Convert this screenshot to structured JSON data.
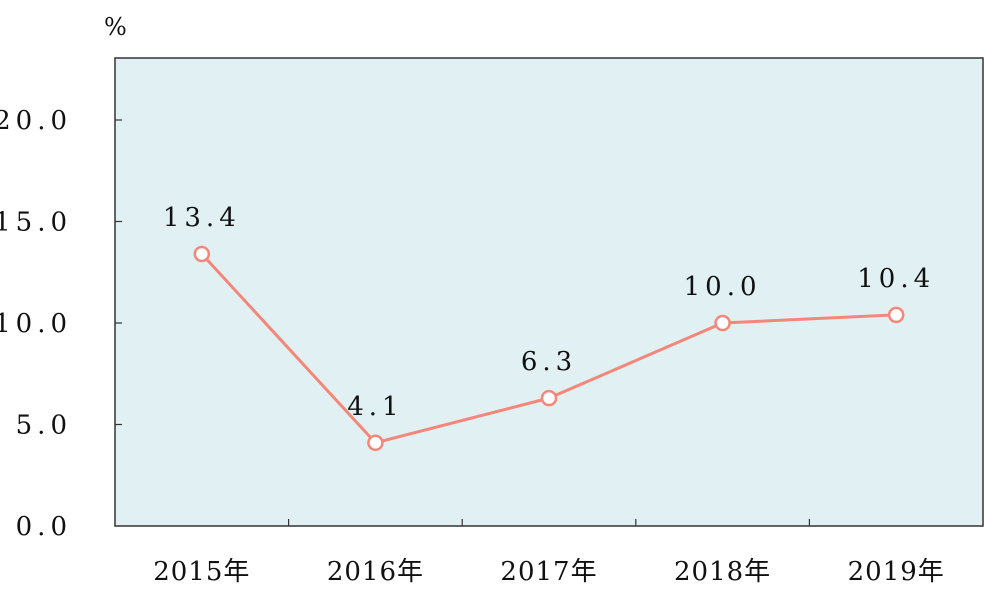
{
  "chart_data": {
    "type": "line",
    "title": "",
    "xlabel": "",
    "ylabel": "",
    "unit": "%",
    "categories": [
      "2015年",
      "2016年",
      "2017年",
      "2018年",
      "2019年"
    ],
    "series": [
      {
        "values": [
          13.4,
          4.1,
          6.3,
          10.0,
          10.4
        ]
      }
    ],
    "data_labels": [
      "13.4",
      "4.1",
      "6.3",
      "10.0",
      "10.4"
    ],
    "ylim": [
      0,
      25
    ],
    "y_ticks": [
      0,
      5,
      10,
      15,
      20
    ],
    "y_tick_labels": [
      "0.0",
      "5.0",
      "10.0",
      "15.0",
      "20.0"
    ],
    "grid": false,
    "legend": "none",
    "colors": {
      "plot_background": "#e1f0f2",
      "line": "#f4877a",
      "marker_fill": "#ffffff",
      "axis": "#333333"
    }
  }
}
